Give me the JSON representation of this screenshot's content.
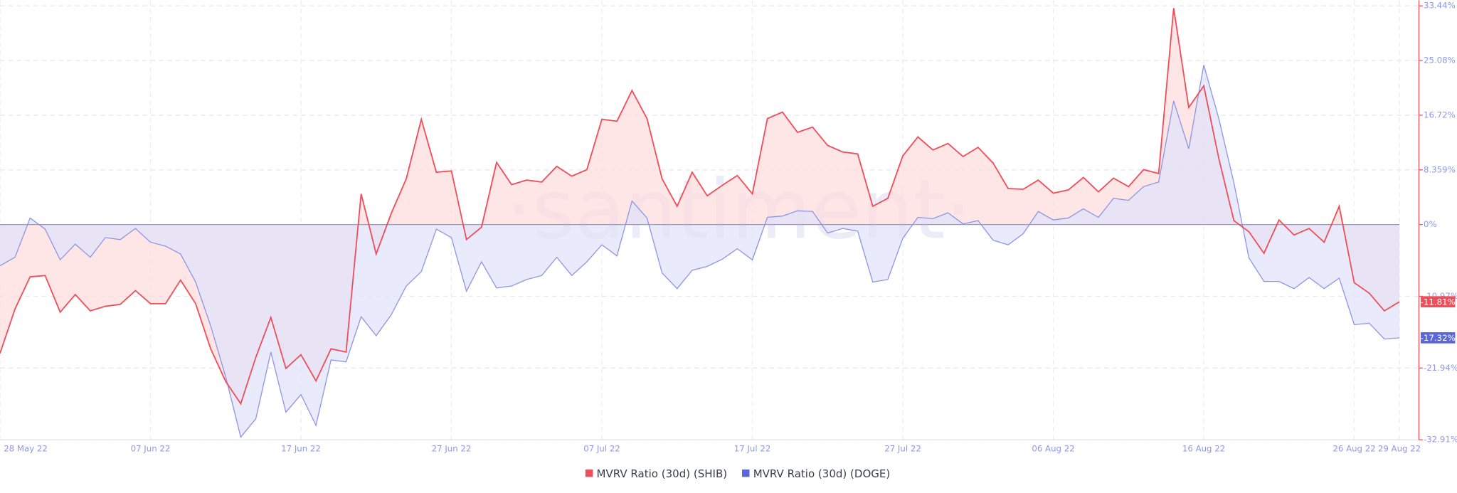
{
  "chart_data": {
    "type": "area",
    "watermark": "·santiment·",
    "categories": [
      "28 May 22",
      null,
      null,
      null,
      null,
      null,
      null,
      null,
      null,
      null,
      "07 Jun 22",
      null,
      null,
      null,
      null,
      null,
      null,
      null,
      null,
      null,
      "17 Jun 22",
      null,
      null,
      null,
      null,
      null,
      null,
      null,
      null,
      null,
      "27 Jun 22",
      null,
      null,
      null,
      null,
      null,
      null,
      null,
      null,
      null,
      "07 Jul 22",
      null,
      null,
      null,
      null,
      null,
      null,
      null,
      null,
      null,
      "17 Jul 22",
      null,
      null,
      null,
      null,
      null,
      null,
      null,
      null,
      null,
      "27 Jul 22",
      null,
      null,
      null,
      null,
      null,
      null,
      null,
      null,
      null,
      "06 Aug 22",
      null,
      null,
      null,
      null,
      null,
      null,
      null,
      null,
      null,
      "16 Aug 22",
      null,
      null,
      null,
      null,
      null,
      null,
      null,
      null,
      null,
      "26 Aug 22",
      null,
      null,
      "29 Aug 22"
    ],
    "series": [
      {
        "name": "MVRV Ratio (30d) (SHIB)",
        "color": "#ef4f5a",
        "fill": "#fddcdd",
        "values": [
          -19.7,
          -12.9,
          -8.0,
          -7.8,
          -13.4,
          -10.7,
          -13.2,
          -12.5,
          -12.2,
          -10.1,
          -12.1,
          -12.1,
          -8.5,
          -12.1,
          -19.0,
          -24.0,
          -27.4,
          -20.3,
          -14.2,
          -22.0,
          -19.9,
          -23.9,
          -19.0,
          -19.5,
          4.7,
          -4.5,
          1.7,
          7.0,
          16.1,
          8.0,
          8.2,
          -2.3,
          -0.4,
          9.5,
          6.1,
          6.8,
          6.5,
          8.9,
          7.4,
          8.4,
          16.1,
          15.8,
          20.5,
          16.2,
          7.0,
          2.8,
          8.0,
          4.4,
          6.0,
          7.5,
          4.7,
          16.2,
          17.2,
          14.1,
          14.9,
          12.1,
          11.1,
          10.8,
          2.8,
          4.0,
          10.5,
          13.4,
          11.4,
          12.4,
          10.4,
          11.8,
          9.4,
          5.5,
          5.4,
          6.8,
          4.8,
          5.3,
          7.2,
          5.0,
          7.1,
          5.8,
          8.4,
          7.8,
          33.1,
          17.9,
          21.2,
          10.1,
          0.6,
          -1.1,
          -4.4,
          0.7,
          -1.6,
          -0.6,
          -2.7,
          2.8,
          -8.9,
          -10.5,
          -13.2,
          -11.81
        ],
        "value_labels": [
          null,
          null,
          null,
          null,
          null,
          null,
          null,
          null,
          null,
          null,
          null,
          null,
          null,
          null,
          null,
          null,
          null,
          null,
          null,
          null,
          null,
          null,
          null,
          null,
          null,
          null,
          null,
          null,
          null,
          null,
          null,
          null,
          null,
          null,
          null,
          null,
          null,
          null,
          null,
          null,
          null,
          null,
          null,
          null,
          null,
          null,
          null,
          null,
          null,
          null,
          null,
          null,
          null,
          null,
          null,
          null,
          null,
          null,
          null,
          null,
          null,
          null,
          null,
          null,
          null,
          null,
          null,
          null,
          null,
          null,
          null,
          null,
          null,
          null,
          null,
          null,
          null,
          null,
          null,
          null,
          null,
          null,
          null,
          null,
          null,
          null,
          null,
          null,
          null,
          null,
          null,
          null,
          null,
          "-11.81%"
        ]
      },
      {
        "name": "MVRV Ratio (30d) (DOGE)",
        "color": "#8d95e6",
        "badge_color": "#5b67d8",
        "fill": "#e1e3fa",
        "values": [
          -6.3,
          -5.0,
          1.0,
          -0.7,
          -5.4,
          -3.0,
          -5.0,
          -2.0,
          -2.3,
          -0.6,
          -2.7,
          -3.3,
          -4.5,
          -8.8,
          -15.5,
          -23.3,
          -32.5,
          -29.7,
          -19.5,
          -28.7,
          -26.0,
          -30.7,
          -20.7,
          -21.0,
          -14.1,
          -17.0,
          -13.8,
          -9.4,
          -7.2,
          -0.7,
          -2.0,
          -10.2,
          -5.7,
          -9.7,
          -9.4,
          -8.4,
          -7.8,
          -5.0,
          -7.8,
          -5.7,
          -3.1,
          -4.8,
          3.6,
          1.0,
          -7.4,
          -9.8,
          -7.0,
          -6.4,
          -5.3,
          -3.7,
          -5.4,
          1.1,
          1.3,
          2.1,
          2.0,
          -1.3,
          -0.6,
          -1.0,
          -8.8,
          -8.4,
          -2.1,
          1.1,
          0.9,
          1.8,
          0.1,
          0.6,
          -2.4,
          -3.1,
          -1.4,
          2.0,
          0.7,
          1.0,
          2.4,
          1.1,
          4.0,
          3.7,
          5.8,
          6.5,
          18.9,
          11.6,
          24.4,
          16.2,
          6.4,
          -5.1,
          -8.7,
          -8.7,
          -9.8,
          -8.1,
          -9.8,
          -8.2,
          -15.3,
          -15.1,
          -17.5,
          -17.32
        ],
        "value_labels": [
          null,
          null,
          null,
          null,
          null,
          null,
          null,
          null,
          null,
          null,
          null,
          null,
          null,
          null,
          null,
          null,
          null,
          null,
          null,
          null,
          null,
          null,
          null,
          null,
          null,
          null,
          null,
          null,
          null,
          null,
          null,
          null,
          null,
          null,
          null,
          null,
          null,
          null,
          null,
          null,
          null,
          null,
          null,
          null,
          null,
          null,
          null,
          null,
          null,
          null,
          null,
          null,
          null,
          null,
          null,
          null,
          null,
          null,
          null,
          null,
          null,
          null,
          null,
          null,
          null,
          null,
          null,
          null,
          null,
          null,
          null,
          null,
          null,
          null,
          null,
          null,
          null,
          null,
          null,
          null,
          null,
          null,
          null,
          null,
          null,
          null,
          null,
          null,
          null,
          null,
          null,
          null,
          null,
          "-17.32%"
        ]
      }
    ],
    "ylim": [
      -32.91,
      33.44
    ],
    "yticks": [
      {
        "value": 33.44,
        "label": "33.44%"
      },
      {
        "value": 25.08,
        "label": "25.08%"
      },
      {
        "value": 16.72,
        "label": "16.72%"
      },
      {
        "value": 8.359,
        "label": "8.359%"
      },
      {
        "value": 0,
        "label": "0%"
      },
      {
        "value": -10.97,
        "label": "-10.97%"
      },
      {
        "value": -21.94,
        "label": "-21.94%"
      },
      {
        "value": -32.91,
        "label": "-32.91%"
      }
    ],
    "grid": true,
    "legend": "bottom"
  }
}
